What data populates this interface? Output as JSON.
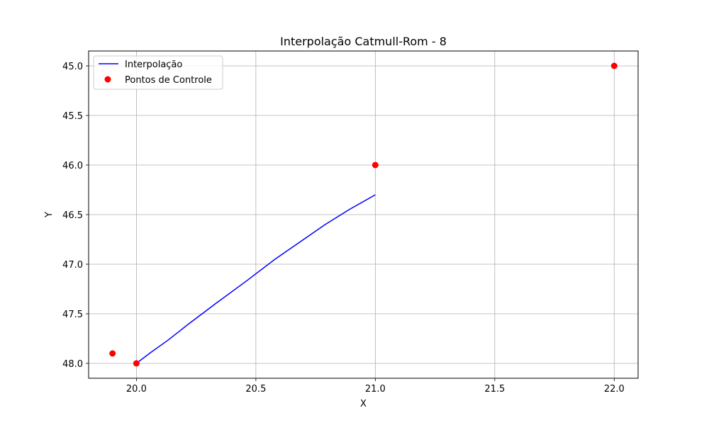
{
  "chart_data": {
    "type": "line",
    "title": "Interpolação Catmull-Rom - 8",
    "xlabel": "X",
    "ylabel": "Y",
    "xlim": [
      19.8,
      22.1
    ],
    "ylim": [
      48.15,
      44.85
    ],
    "y_inverted": true,
    "grid": true,
    "legend_position": "top-left",
    "xticks": [
      20.0,
      20.5,
      21.0,
      21.5,
      22.0
    ],
    "xtick_labels": [
      "20.0",
      "20.5",
      "21.0",
      "21.5",
      "22.0"
    ],
    "yticks": [
      45.0,
      45.5,
      46.0,
      46.5,
      47.0,
      47.5,
      48.0
    ],
    "ytick_labels": [
      "45.0",
      "45.5",
      "46.0",
      "46.5",
      "47.0",
      "47.5",
      "48.0"
    ],
    "series": [
      {
        "name": "Interpolação",
        "kind": "line",
        "color": "#0000ff",
        "points": [
          [
            20.0,
            48.0
          ],
          [
            20.06,
            47.89
          ],
          [
            20.13,
            47.77
          ],
          [
            20.22,
            47.6
          ],
          [
            20.33,
            47.4
          ],
          [
            20.46,
            47.17
          ],
          [
            20.58,
            46.95
          ],
          [
            20.7,
            46.75
          ],
          [
            20.79,
            46.6
          ],
          [
            20.89,
            46.45
          ],
          [
            21.0,
            46.3
          ]
        ]
      },
      {
        "name": "Pontos de Controle",
        "kind": "scatter",
        "color": "#ff0000",
        "points": [
          [
            19.9,
            47.9
          ],
          [
            20.0,
            48.0
          ],
          [
            21.0,
            46.0
          ],
          [
            22.0,
            45.0
          ]
        ]
      }
    ]
  }
}
